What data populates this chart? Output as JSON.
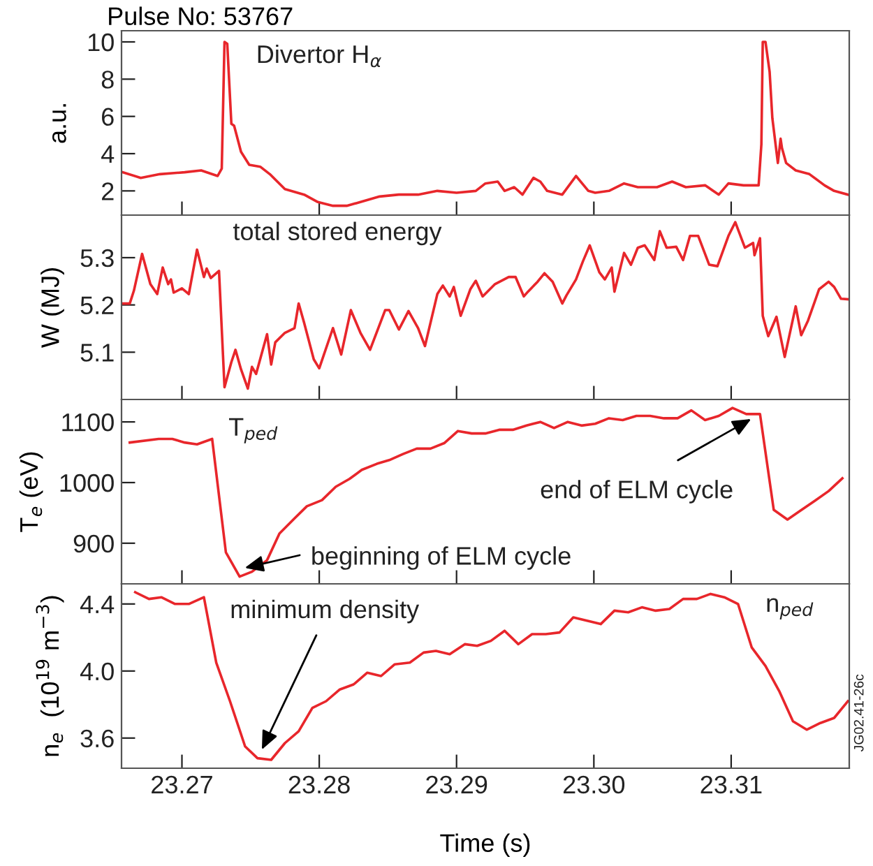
{
  "chart_data": [
    {
      "type": "line",
      "title": "Pulse No: 53767",
      "ylabel": "a.u.",
      "xlim": [
        23.2656,
        23.3186
      ],
      "xticks": [
        23.27,
        23.28,
        23.29,
        23.3,
        23.31
      ],
      "ylim": [
        0.7,
        10.6
      ],
      "yticks": [
        2,
        4,
        6,
        8,
        10
      ],
      "tick_labels": "y",
      "grid": false,
      "legend": false,
      "annotations": [
        "Divertor H$_{α}$"
      ],
      "series": [
        {
          "color": "#e8262b",
          "x": [
            23.2657,
            23.267,
            23.2684,
            23.2702,
            23.2714,
            23.2726,
            23.2729,
            23.2731,
            23.2733,
            23.2736,
            23.2738,
            23.2743,
            23.2749,
            23.2757,
            23.2764,
            23.2775,
            23.2789,
            23.2799,
            23.281,
            23.282,
            23.283,
            23.2844,
            23.2858,
            23.2872,
            23.2886,
            23.29,
            23.2914,
            23.2921,
            23.293,
            23.2935,
            23.2942,
            23.2948,
            23.2956,
            23.2961,
            23.2966,
            23.2977,
            23.2987,
            23.2996,
            23.3001,
            23.3011,
            23.3022,
            23.3032,
            23.3046,
            23.3057,
            23.3067,
            23.3081,
            23.3091,
            23.3098,
            23.3109,
            23.312,
            23.3122,
            23.3123,
            23.3125,
            23.3128,
            23.313,
            23.3134,
            23.3136,
            23.3137,
            23.314,
            23.3147,
            23.3157,
            23.3168,
            23.3175,
            23.3185
          ],
          "values": [
            3.0,
            2.7,
            2.9,
            3.0,
            3.1,
            2.8,
            3.2,
            10.0,
            9.9,
            5.6,
            5.5,
            4.1,
            3.4,
            3.3,
            2.9,
            2.1,
            1.8,
            1.4,
            1.2,
            1.2,
            1.4,
            1.7,
            1.8,
            1.8,
            2.0,
            1.9,
            2.0,
            2.4,
            2.5,
            2.0,
            2.2,
            1.8,
            2.7,
            2.5,
            2.0,
            1.8,
            2.8,
            2.0,
            1.9,
            2.0,
            2.4,
            2.2,
            2.2,
            2.5,
            2.2,
            2.3,
            1.8,
            2.4,
            2.3,
            2.3,
            4.5,
            10.0,
            10.0,
            8.4,
            5.9,
            3.5,
            4.8,
            4.3,
            3.5,
            3.1,
            2.9,
            2.3,
            2.0,
            1.8
          ]
        }
      ]
    },
    {
      "type": "line",
      "ylabel": "W (MJ)",
      "xlim": [
        23.2656,
        23.3186
      ],
      "xticks": [
        23.27,
        23.28,
        23.29,
        23.3,
        23.31
      ],
      "ylim": [
        5.0,
        5.39
      ],
      "yticks": [
        5.1,
        5.2,
        5.3
      ],
      "tick_labels": "y",
      "grid": false,
      "legend": false,
      "annotations": [
        "total stored energy"
      ],
      "series": [
        {
          "color": "#e8262b",
          "x": [
            23.2657,
            23.2662,
            23.2665,
            23.2671,
            23.2677,
            23.2682,
            23.2686,
            23.269,
            23.2692,
            23.2694,
            23.27,
            23.2705,
            23.2711,
            23.2716,
            23.2718,
            23.2721,
            23.2727,
            23.2731,
            23.2736,
            23.2739,
            23.2743,
            23.2748,
            23.2751,
            23.2754,
            23.2762,
            23.2765,
            23.2768,
            23.2775,
            23.2782,
            23.2785,
            23.2789,
            23.2796,
            23.28,
            23.281,
            23.2816,
            23.2823,
            23.283,
            23.2837,
            23.2848,
            23.2851,
            23.2858,
            23.2865,
            23.2872,
            23.2877,
            23.2886,
            23.289,
            23.2895,
            23.2898,
            23.2903,
            23.291,
            23.2914,
            23.2919,
            23.2928,
            23.2938,
            23.2943,
            23.2949,
            23.2952,
            23.2959,
            23.2964,
            23.297,
            23.2977,
            23.298,
            23.2987,
            23.2992,
            23.2997,
            23.3004,
            23.3008,
            23.3013,
            23.3015,
            23.3022,
            23.3027,
            23.3032,
            23.3037,
            23.3044,
            23.3048,
            23.3053,
            23.306,
            23.3065,
            23.307,
            23.3076,
            23.3084,
            23.309,
            23.3098,
            23.3103,
            23.311,
            23.3116,
            23.3117,
            23.3121,
            23.3123,
            23.3127,
            23.3133,
            23.3139,
            23.3147,
            23.3151,
            23.3156,
            23.3161,
            23.3164,
            23.3171,
            23.3175,
            23.318,
            23.3185
          ],
          "values": [
            5.203,
            5.203,
            5.23,
            5.308,
            5.244,
            5.223,
            5.279,
            5.244,
            5.254,
            5.226,
            5.235,
            5.223,
            5.317,
            5.259,
            5.277,
            5.257,
            5.272,
            5.026,
            5.079,
            5.105,
            5.064,
            5.023,
            5.069,
            5.054,
            5.138,
            5.074,
            5.121,
            5.141,
            5.151,
            5.203,
            5.162,
            5.085,
            5.066,
            5.151,
            5.095,
            5.189,
            5.141,
            5.105,
            5.189,
            5.189,
            5.148,
            5.187,
            5.151,
            5.113,
            5.223,
            5.241,
            5.218,
            5.238,
            5.177,
            5.233,
            5.251,
            5.218,
            5.244,
            5.259,
            5.259,
            5.218,
            5.228,
            5.249,
            5.267,
            5.249,
            5.203,
            5.22,
            5.254,
            5.292,
            5.326,
            5.269,
            5.254,
            5.279,
            5.228,
            5.31,
            5.285,
            5.321,
            5.326,
            5.295,
            5.356,
            5.321,
            5.323,
            5.295,
            5.346,
            5.346,
            5.285,
            5.282,
            5.346,
            5.375,
            5.321,
            5.331,
            5.305,
            5.341,
            5.177,
            5.134,
            5.175,
            5.09,
            5.197,
            5.136,
            5.167,
            5.208,
            5.233,
            5.249,
            5.238,
            5.213,
            5.212
          ]
        }
      ]
    },
    {
      "type": "line",
      "ylabel": "T$_{e}$ (eV)",
      "xlim": [
        23.2656,
        23.3186
      ],
      "xticks": [
        23.27,
        23.28,
        23.29,
        23.3,
        23.31
      ],
      "ylim": [
        833,
        1137
      ],
      "yticks": [
        900,
        1000,
        1100
      ],
      "tick_labels": "y",
      "grid": false,
      "legend": false,
      "annotations": [
        "T$_{ped}$",
        {
          "text": "beginning of ELM cycle",
          "x": 23.2743,
          "y": 858
        },
        {
          "text": "end of ELM cycle",
          "x": 23.3117,
          "y": 1108
        }
      ],
      "series": [
        {
          "color": "#e8262b",
          "x": [
            23.2662,
            23.2683,
            23.2693,
            23.2702,
            23.2711,
            23.2722,
            23.2732,
            23.2742,
            23.2751,
            23.2762,
            23.2771,
            23.2782,
            23.2791,
            23.2802,
            23.2812,
            23.2822,
            23.2831,
            23.2842,
            23.2851,
            23.2861,
            23.2871,
            23.2881,
            23.2891,
            23.2901,
            23.2911,
            23.2921,
            23.2931,
            23.2941,
            23.2951,
            23.2961,
            23.2971,
            23.2981,
            23.2991,
            23.3001,
            23.3011,
            23.3021,
            23.3031,
            23.3041,
            23.3051,
            23.3061,
            23.3071,
            23.3081,
            23.3091,
            23.3101,
            23.3111,
            23.3121,
            23.3131,
            23.3141,
            23.315,
            23.3161,
            23.3171,
            23.3181
          ],
          "values": [
            1066,
            1072,
            1072,
            1066,
            1063,
            1072,
            885,
            845,
            853,
            872,
            916,
            941,
            961,
            971,
            993,
            1006,
            1021,
            1031,
            1037,
            1047,
            1056,
            1056,
            1065,
            1085,
            1081,
            1081,
            1087,
            1087,
            1094,
            1100,
            1090,
            1100,
            1094,
            1097,
            1106,
            1103,
            1110,
            1110,
            1106,
            1106,
            1119,
            1103,
            1110,
            1123,
            1113,
            1113,
            955,
            939,
            953,
            970,
            986,
            1007
          ]
        }
      ]
    },
    {
      "type": "line",
      "ylabel": "n$_{e}$  (10$^{19}$ m$^{−3}$)",
      "xlabel": "Time (s)",
      "xlim": [
        23.2656,
        23.3186
      ],
      "ylim": [
        3.42,
        4.52
      ],
      "yticks": [
        3.6,
        {
          "value": 4.0,
          "label": "4.0"
        },
        4.4
      ],
      "grid": false,
      "legend": false,
      "xticks": [
        23.27,
        23.28,
        23.29,
        {
          "value": 23.3,
          "label": "23.30"
        },
        23.31
      ],
      "annotations": [
        {
          "text": "minimum density",
          "x": 23.2757,
          "y": 3.51
        },
        "n$_{ped}$",
        "JG02.41-26c"
      ],
      "series": [
        {
          "color": "#e8262b",
          "x": [
            23.2666,
            23.2676,
            23.2685,
            23.2695,
            23.2705,
            23.2716,
            23.2725,
            23.2735,
            23.2746,
            23.2755,
            23.2765,
            23.2775,
            23.2785,
            23.2795,
            23.2805,
            23.2815,
            23.2825,
            23.2835,
            23.2845,
            23.2855,
            23.2866,
            23.2876,
            23.2885,
            23.2895,
            23.2906,
            23.2915,
            23.2925,
            23.2935,
            23.2945,
            23.2955,
            23.2965,
            23.2975,
            23.2985,
            23.2995,
            23.3005,
            23.3015,
            23.3025,
            23.3035,
            23.3045,
            23.3055,
            23.3065,
            23.3075,
            23.3085,
            23.3095,
            23.3105,
            23.3115,
            23.3125,
            23.3135,
            23.3145,
            23.3155,
            23.3165,
            23.3175,
            23.3185
          ],
          "values": [
            4.47,
            4.43,
            4.44,
            4.4,
            4.4,
            4.44,
            4.05,
            3.82,
            3.55,
            3.48,
            3.47,
            3.57,
            3.64,
            3.78,
            3.82,
            3.89,
            3.92,
            3.99,
            3.97,
            4.04,
            4.05,
            4.11,
            4.12,
            4.1,
            4.16,
            4.15,
            4.18,
            4.24,
            4.16,
            4.22,
            4.22,
            4.23,
            4.32,
            4.3,
            4.28,
            4.36,
            4.35,
            4.38,
            4.36,
            4.37,
            4.43,
            4.43,
            4.46,
            4.44,
            4.4,
            4.14,
            4.03,
            3.88,
            3.7,
            3.65,
            3.69,
            3.72,
            3.82
          ]
        }
      ]
    }
  ]
}
